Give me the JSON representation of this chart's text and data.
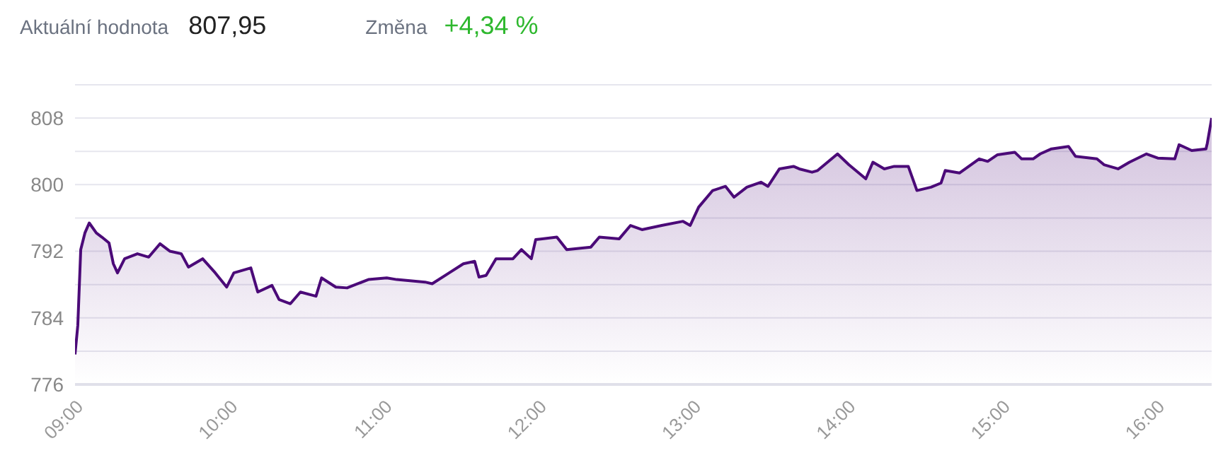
{
  "chart_data": {
    "type": "area",
    "annotations": [
      "Aktuální hodnota",
      "807,95",
      "Změna",
      "+4,34 %"
    ],
    "x": [
      9.0,
      9.018,
      9.037,
      9.064,
      9.092,
      9.138,
      9.174,
      9.22,
      9.248,
      9.275,
      9.321,
      9.404,
      9.477,
      9.55,
      9.615,
      9.688,
      9.734,
      9.826,
      9.908,
      9.982,
      10.028,
      10.138,
      10.183,
      10.275,
      10.321,
      10.394,
      10.459,
      10.56,
      10.596,
      10.688,
      10.761,
      10.899,
      11.018,
      11.083,
      11.266,
      11.312,
      11.422,
      11.514,
      11.587,
      11.615,
      11.661,
      11.725,
      11.835,
      11.89,
      11.954,
      11.982,
      12.119,
      12.183,
      12.339,
      12.394,
      12.523,
      12.596,
      12.67,
      12.798,
      12.936,
      12.982,
      13.037,
      13.128,
      13.211,
      13.266,
      13.349,
      13.44,
      13.486,
      13.56,
      13.651,
      13.688,
      13.771,
      13.807,
      13.936,
      14.009,
      14.119,
      14.165,
      14.239,
      14.303,
      14.394,
      14.45,
      14.541,
      14.606,
      14.633,
      14.725,
      14.853,
      14.908,
      14.972,
      15.083,
      15.128,
      15.202,
      15.248,
      15.321,
      15.431,
      15.477,
      15.615,
      15.661,
      15.752,
      15.826,
      15.936,
      16.009,
      16.119,
      16.147,
      16.229,
      16.321,
      16.33,
      16.358
    ],
    "series": [
      {
        "color": "#4b0a78",
        "values": [
          779.6,
          783.1,
          792.2,
          794.2,
          795.4,
          794.2,
          793.7,
          793.0,
          790.5,
          789.4,
          791.1,
          791.7,
          791.3,
          792.9,
          792.0,
          791.7,
          790.1,
          791.1,
          789.4,
          787.7,
          789.4,
          790.0,
          787.1,
          787.9,
          786.2,
          785.7,
          787.1,
          786.6,
          788.8,
          787.7,
          787.6,
          788.6,
          788.8,
          788.6,
          788.3,
          788.1,
          789.4,
          790.5,
          790.8,
          788.9,
          789.1,
          791.1,
          791.1,
          792.2,
          791.1,
          793.4,
          793.7,
          792.2,
          792.5,
          793.7,
          793.5,
          795.1,
          794.6,
          795.1,
          795.6,
          795.1,
          797.3,
          799.3,
          799.8,
          798.5,
          799.7,
          800.3,
          799.8,
          801.9,
          802.2,
          801.9,
          801.5,
          801.7,
          803.7,
          802.4,
          800.7,
          802.7,
          801.9,
          802.2,
          802.2,
          799.3,
          799.7,
          800.2,
          801.7,
          801.4,
          803.1,
          802.8,
          803.6,
          803.9,
          803.1,
          803.1,
          803.7,
          804.3,
          804.6,
          803.4,
          803.1,
          802.4,
          801.9,
          802.7,
          803.7,
          803.2,
          803.1,
          804.8,
          804.1,
          804.3,
          805.0,
          808.0
        ]
      }
    ],
    "xlim": [
      9,
      16.358
    ],
    "xticks": [
      {
        "value": 9,
        "label": "09:00"
      },
      {
        "value": 10,
        "label": "10:00"
      },
      {
        "value": 11,
        "label": "11:00"
      },
      {
        "value": 12,
        "label": "12:00"
      },
      {
        "value": 13,
        "label": "13:00"
      },
      {
        "value": 14,
        "label": "14:00"
      },
      {
        "value": 15,
        "label": "15:00"
      },
      {
        "value": 16,
        "label": "16:00"
      }
    ],
    "ylim": [
      776,
      812
    ],
    "yticks": [
      776,
      {
        "value": 780,
        "label": null
      },
      784,
      {
        "value": 788,
        "label": null
      },
      792,
      {
        "value": 796,
        "label": null
      },
      800,
      {
        "value": 804,
        "label": null
      },
      808,
      {
        "value": 812,
        "label": null
      }
    ],
    "grid": "y",
    "marker": "none",
    "line_style": "solid"
  }
}
